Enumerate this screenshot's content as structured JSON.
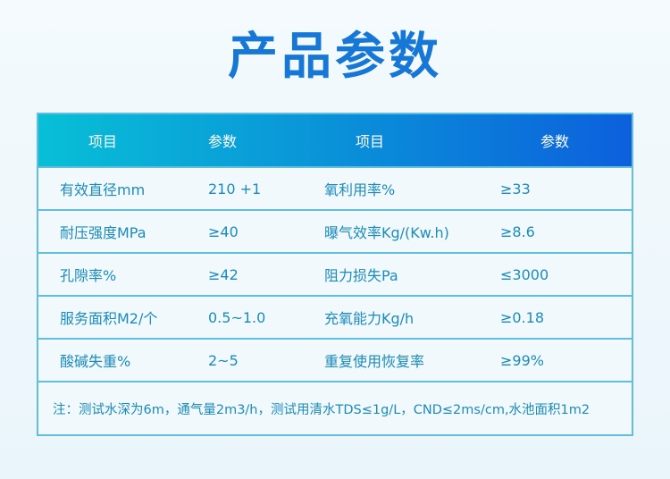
{
  "title": "产品参数",
  "table": {
    "headers": [
      "项目",
      "参数",
      "项目",
      "参数"
    ],
    "rows": [
      [
        "有效直径mm",
        "210 +1",
        "氧利用率%",
        "≥33"
      ],
      [
        "耐压强度MPa",
        "≥40",
        "曝气效率Kg/(Kw.h)",
        "≥8.6"
      ],
      [
        "孔隙率%",
        "≥42",
        "阻力损失Pa",
        "≤3000"
      ],
      [
        "服务面积M2/个",
        "0.5~1.0",
        "充氧能力Kg/h",
        "≥0.18"
      ],
      [
        "酸碱失重%",
        "2~5",
        "重复使用恢复率",
        "≥99%"
      ]
    ],
    "note": "注：测试水深为6m，通气量2m3/h，测试用清水TDS≤1g/L，CND≤2ms/cm,水池面积1m2"
  },
  "colors": {
    "title": "#1677d6",
    "header_start": "#08bfd6",
    "header_end": "#0c60dc",
    "text": "#1b8bbd",
    "border": "#63bde0"
  }
}
